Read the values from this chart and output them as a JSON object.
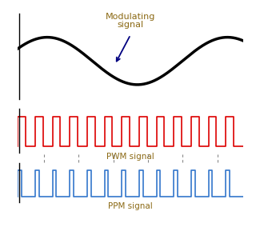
{
  "bg_color": "#ffffff",
  "modulating_color": "#000000",
  "pwm_color": "#dd0000",
  "ppm_color": "#3377cc",
  "label_color": "#8B6914",
  "arrow_color": "#000080",
  "axis_color": "#000000",
  "dashed_color": "#888888",
  "mod_label_line1": "Modulating",
  "mod_label_line2": "signal",
  "pwm_label": "PWM signal",
  "ppm_label": "PPM signal",
  "n_pulses": 13,
  "pwm_duty": 0.45,
  "ppm_duty": 0.22,
  "fig_width": 3.2,
  "fig_height": 2.94,
  "dpi": 100
}
